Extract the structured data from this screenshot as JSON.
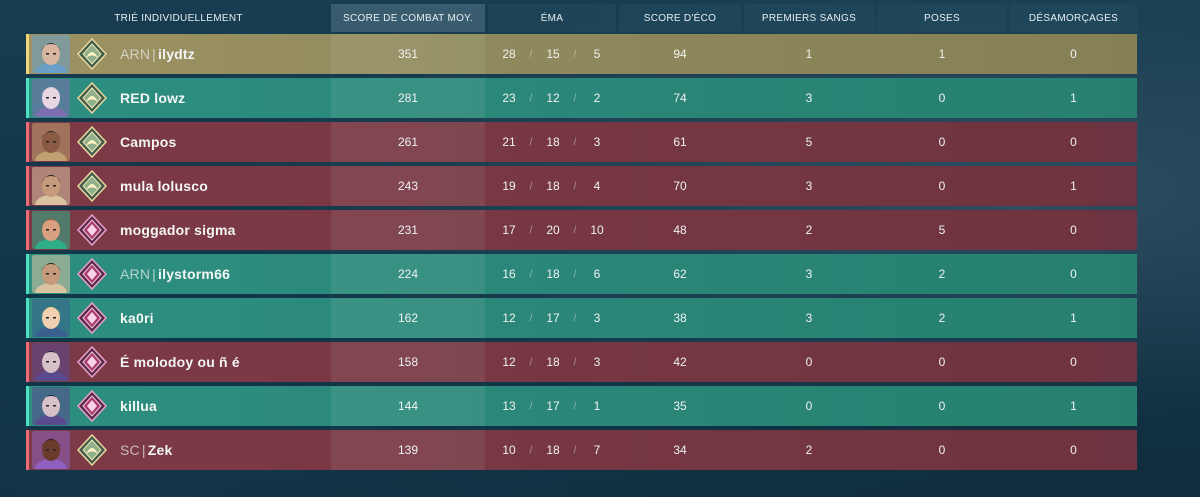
{
  "headers": {
    "player": "TRIÉ INDIVIDUELLEMENT",
    "acs": "SCORE DE COMBAT MOY.",
    "kda": "ÉMA",
    "econ": "SCORE D'ÉCO",
    "first_bloods": "PREMIERS SANGS",
    "plants": "POSES",
    "defuses": "DÉSAMORÇAGES"
  },
  "colors": {
    "gold": "#9e9262",
    "green": "#2d8f80",
    "red": "#7c3a46"
  },
  "players": [
    {
      "team": "gold",
      "tag": "ARN",
      "name": "ilydtz",
      "acs": "351",
      "k": "28",
      "d": "15",
      "a": "5",
      "econ": "94",
      "fb": "1",
      "plants": "1",
      "defuses": "0",
      "rank_icon": "ascendant-rank-icon",
      "skin": "#d8b6a0",
      "hair": "#2d2a3a",
      "accent": "#6aa0c8"
    },
    {
      "team": "green",
      "tag": "",
      "name": "RED lowz",
      "acs": "281",
      "k": "23",
      "d": "12",
      "a": "2",
      "econ": "74",
      "fb": "3",
      "plants": "0",
      "defuses": "1",
      "rank_icon": "ascendant-rank-icon",
      "skin": "#e8d6e2",
      "hair": "#c9c2d8",
      "accent": "#7c6fb0"
    },
    {
      "team": "red",
      "tag": "",
      "name": "Campos",
      "acs": "261",
      "k": "21",
      "d": "18",
      "a": "3",
      "econ": "61",
      "fb": "5",
      "plants": "0",
      "defuses": "0",
      "rank_icon": "ascendant-rank-icon",
      "skin": "#8a5a44",
      "hair": "#2a2323",
      "accent": "#c0a070"
    },
    {
      "team": "red",
      "tag": "",
      "name": "mula lolusco",
      "acs": "243",
      "k": "19",
      "d": "18",
      "a": "4",
      "econ": "70",
      "fb": "3",
      "plants": "0",
      "defuses": "1",
      "rank_icon": "ascendant-rank-icon",
      "skin": "#c49a7a",
      "hair": "#1f1c1c",
      "accent": "#d9c3a0"
    },
    {
      "team": "red",
      "tag": "",
      "name": "moggador sigma",
      "acs": "231",
      "k": "17",
      "d": "20",
      "a": "10",
      "econ": "48",
      "fb": "2",
      "plants": "5",
      "defuses": "0",
      "rank_icon": "immortal-rank-icon",
      "skin": "#d9a080",
      "hair": "#b04a2a",
      "accent": "#2fae8a"
    },
    {
      "team": "green",
      "tag": "ARN",
      "name": "ilystorm66",
      "acs": "224",
      "k": "16",
      "d": "18",
      "a": "6",
      "econ": "62",
      "fb": "3",
      "plants": "2",
      "defuses": "0",
      "rank_icon": "immortal-rank-icon",
      "skin": "#c49a7a",
      "hair": "#1f1c1c",
      "accent": "#d9c3a0"
    },
    {
      "team": "green",
      "tag": "",
      "name": "ka0ri",
      "acs": "162",
      "k": "12",
      "d": "17",
      "a": "3",
      "econ": "38",
      "fb": "3",
      "plants": "2",
      "defuses": "1",
      "rank_icon": "immortal-rank-icon",
      "skin": "#f0d0b0",
      "hair": "#e8d070",
      "accent": "#3a6090"
    },
    {
      "team": "red",
      "tag": "",
      "name": "É molodoy ou ñ é",
      "acs": "158",
      "k": "12",
      "d": "18",
      "a": "3",
      "econ": "42",
      "fb": "0",
      "plants": "0",
      "defuses": "0",
      "rank_icon": "immortal-rank-icon",
      "skin": "#d8c0c8",
      "hair": "#1a1a30",
      "accent": "#5a4a90"
    },
    {
      "team": "green",
      "tag": "",
      "name": "killua",
      "acs": "144",
      "k": "13",
      "d": "17",
      "a": "1",
      "econ": "35",
      "fb": "0",
      "plants": "0",
      "defuses": "1",
      "rank_icon": "immortal-rank-icon",
      "skin": "#d8c0c8",
      "hair": "#1a1a30",
      "accent": "#5a4a90"
    },
    {
      "team": "red",
      "tag": "SC",
      "name": "Zek",
      "acs": "139",
      "k": "10",
      "d": "18",
      "a": "7",
      "econ": "34",
      "fb": "2",
      "plants": "0",
      "defuses": "0",
      "rank_icon": "ascendant-rank-icon",
      "skin": "#6a3a2a",
      "hair": "#2a1a1a",
      "accent": "#9060c0"
    }
  ]
}
